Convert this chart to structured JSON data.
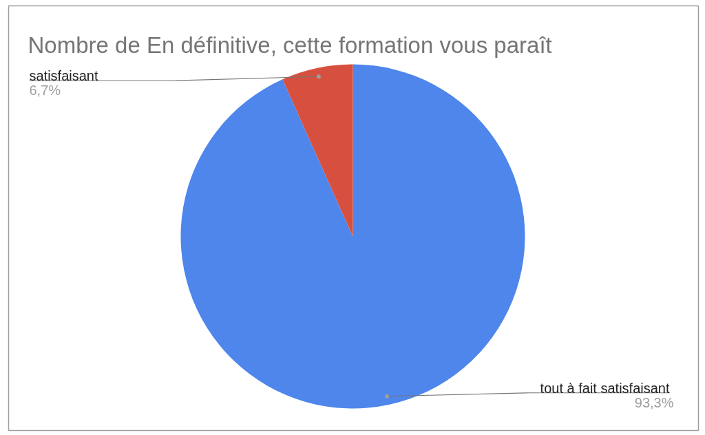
{
  "chart_data": {
    "type": "pie",
    "title": "Nombre de En définitive, cette formation vous paraît",
    "categories": [
      "tout à fait satisfaisant",
      "satisfaisant"
    ],
    "values": [
      93.3,
      6.7
    ],
    "colors": [
      "#4f86ec",
      "#d7503f"
    ],
    "value_labels": [
      "93,3%",
      "6,7%"
    ]
  }
}
